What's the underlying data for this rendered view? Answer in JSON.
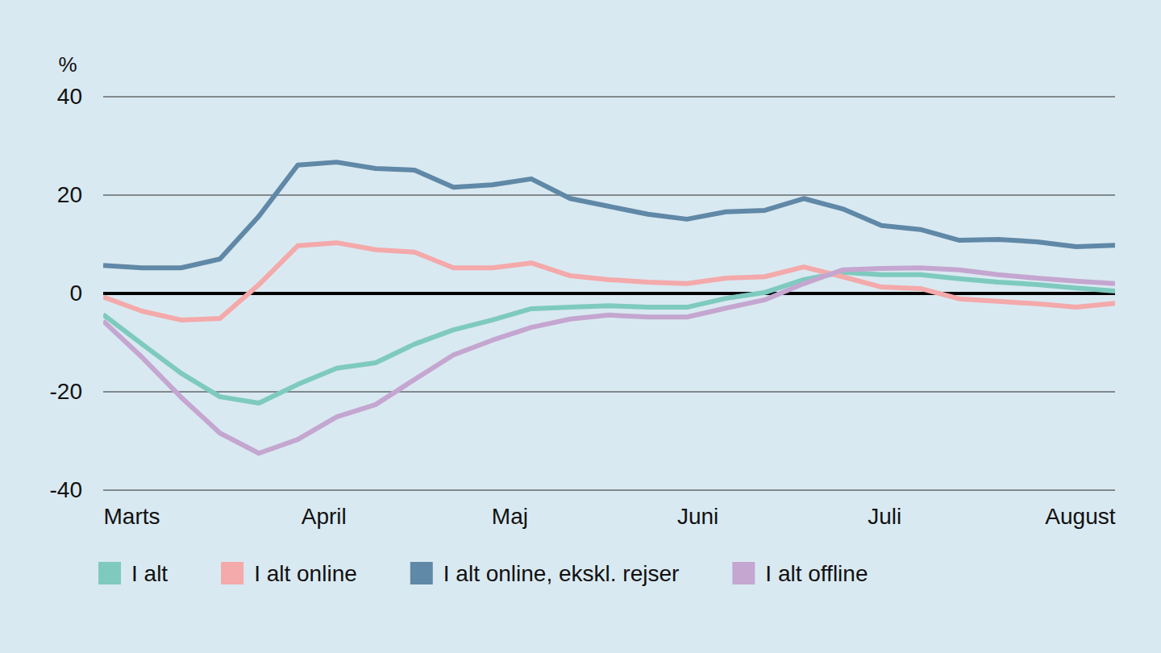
{
  "chart_data": {
    "type": "line",
    "y_label": "%",
    "x": [
      0,
      1,
      2,
      3,
      4,
      5,
      6,
      7,
      8,
      9,
      10,
      11,
      12,
      13,
      14,
      15,
      16,
      17,
      18,
      19,
      20,
      21,
      22,
      23,
      24,
      25,
      26
    ],
    "xlim": [
      0,
      26
    ],
    "xticks": [
      {
        "value": 0,
        "label": "Marts"
      },
      {
        "value": 5.66,
        "label": "April"
      },
      {
        "value": 10.44,
        "label": "Maj"
      },
      {
        "value": 15.27,
        "label": "Juni"
      },
      {
        "value": 20.07,
        "label": "Juli"
      },
      {
        "value": 26,
        "label": "August"
      }
    ],
    "ylim": [
      -40,
      40
    ],
    "yticks": [
      -40,
      -20,
      0,
      20,
      40
    ],
    "grid": true,
    "legend": "bottom",
    "series": [
      {
        "name": "I alt",
        "color": "#7ecabf",
        "values": [
          -4.3,
          -10.3,
          -16.2,
          -21.0,
          -22.3,
          -18.5,
          -15.2,
          -14.1,
          -10.3,
          -7.4,
          -5.4,
          -3.1,
          -2.8,
          -2.5,
          -2.8,
          -2.8,
          -1.0,
          0.2,
          2.8,
          4.3,
          3.8,
          3.8,
          3.0,
          2.3,
          1.8,
          1.1,
          0.5
        ]
      },
      {
        "name": "I alt online",
        "color": "#f4a9aa",
        "values": [
          -0.7,
          -3.6,
          -5.4,
          -5.1,
          1.8,
          9.7,
          10.3,
          8.9,
          8.4,
          5.2,
          5.2,
          6.2,
          3.6,
          2.8,
          2.3,
          2.0,
          3.1,
          3.4,
          5.4,
          3.4,
          1.3,
          1.0,
          -1.1,
          -1.6,
          -2.1,
          -2.8,
          -2.0
        ]
      },
      {
        "name": "I alt online, ekskl. rejser",
        "color": "#6088a7",
        "values": [
          5.7,
          5.2,
          5.2,
          7.0,
          15.7,
          26.1,
          26.7,
          25.4,
          25.1,
          21.6,
          22.1,
          23.3,
          19.3,
          17.7,
          16.1,
          15.1,
          16.6,
          16.9,
          19.3,
          17.2,
          13.8,
          13.0,
          10.8,
          11.0,
          10.5,
          9.5,
          9.8
        ]
      },
      {
        "name": "I alt offline",
        "color": "#c4a6d0",
        "values": [
          -5.6,
          -13.0,
          -21.1,
          -28.4,
          -32.5,
          -29.7,
          -25.1,
          -22.6,
          -17.5,
          -12.5,
          -9.5,
          -6.9,
          -5.2,
          -4.4,
          -4.8,
          -4.8,
          -3.0,
          -1.3,
          2.0,
          4.8,
          5.1,
          5.2,
          4.8,
          3.8,
          3.1,
          2.5,
          2.0
        ]
      }
    ]
  }
}
